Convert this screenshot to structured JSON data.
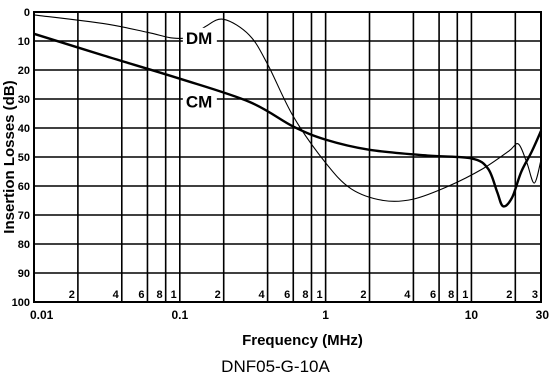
{
  "chart_data": {
    "type": "line",
    "title": "",
    "xlabel_prefix": "Frequency",
    "xlabel_unit": "(MHz)",
    "ylabel_prefix": "Insertion Losses",
    "ylabel_unit": "(dB)",
    "x_scale": "log",
    "xlim": [
      0.01,
      30
    ],
    "ylim": [
      0,
      100
    ],
    "y_inverted": true,
    "y_ticks": [
      0,
      10,
      20,
      30,
      40,
      50,
      60,
      70,
      80,
      90,
      100
    ],
    "y_tick_labels": [
      "0",
      "10",
      "20",
      "30",
      "40",
      "50",
      "60",
      "70",
      "80",
      "90",
      "100"
    ],
    "x_decade_ticks": [
      0.01,
      0.1,
      1,
      10,
      30
    ],
    "x_decade_labels": [
      "0.01",
      "0.1",
      "1",
      "10",
      "30"
    ],
    "x_minor_ticks": [
      {
        "x": 0.02,
        "label": "2"
      },
      {
        "x": 0.04,
        "label": "4"
      },
      {
        "x": 0.06,
        "label": "6"
      },
      {
        "x": 0.08,
        "label": "8"
      },
      {
        "x": 0.1,
        "label": "1"
      },
      {
        "x": 0.2,
        "label": "2"
      },
      {
        "x": 0.4,
        "label": "4"
      },
      {
        "x": 0.6,
        "label": "6"
      },
      {
        "x": 0.8,
        "label": "8"
      },
      {
        "x": 1,
        "label": "1"
      },
      {
        "x": 2,
        "label": "2"
      },
      {
        "x": 4,
        "label": "4"
      },
      {
        "x": 6,
        "label": "6"
      },
      {
        "x": 8,
        "label": "8"
      },
      {
        "x": 10,
        "label": "1"
      },
      {
        "x": 20,
        "label": "2"
      },
      {
        "x": 30,
        "label": "3"
      }
    ],
    "grid": true,
    "series": [
      {
        "name": "DM",
        "line": "thin",
        "points": [
          {
            "x": 0.01,
            "y": 1
          },
          {
            "x": 0.03,
            "y": 4
          },
          {
            "x": 0.06,
            "y": 7
          },
          {
            "x": 0.09,
            "y": 9
          },
          {
            "x": 0.12,
            "y": 8.5
          },
          {
            "x": 0.15,
            "y": 5
          },
          {
            "x": 0.2,
            "y": 2.5
          },
          {
            "x": 0.3,
            "y": 8
          },
          {
            "x": 0.4,
            "y": 18
          },
          {
            "x": 0.6,
            "y": 36
          },
          {
            "x": 1,
            "y": 52
          },
          {
            "x": 1.5,
            "y": 61
          },
          {
            "x": 2.5,
            "y": 65
          },
          {
            "x": 4,
            "y": 64.5
          },
          {
            "x": 7,
            "y": 60
          },
          {
            "x": 12,
            "y": 54
          },
          {
            "x": 18,
            "y": 48
          },
          {
            "x": 21,
            "y": 45.5
          },
          {
            "x": 24,
            "y": 52
          },
          {
            "x": 27,
            "y": 59
          },
          {
            "x": 30,
            "y": 51
          }
        ]
      },
      {
        "name": "CM",
        "line": "thick",
        "points": [
          {
            "x": 0.01,
            "y": 7.5
          },
          {
            "x": 0.03,
            "y": 15
          },
          {
            "x": 0.1,
            "y": 23
          },
          {
            "x": 0.3,
            "y": 31
          },
          {
            "x": 0.6,
            "y": 39.5
          },
          {
            "x": 1,
            "y": 44
          },
          {
            "x": 2,
            "y": 47.5
          },
          {
            "x": 5,
            "y": 49.5
          },
          {
            "x": 10,
            "y": 50.5
          },
          {
            "x": 13,
            "y": 54
          },
          {
            "x": 15,
            "y": 62
          },
          {
            "x": 16.5,
            "y": 67
          },
          {
            "x": 19,
            "y": 64
          },
          {
            "x": 22,
            "y": 55
          },
          {
            "x": 26,
            "y": 48
          },
          {
            "x": 30,
            "y": 41
          }
        ]
      }
    ],
    "annotations": [
      {
        "text": "DM",
        "x": 0.11,
        "y": 11
      },
      {
        "text": "CM",
        "x": 0.11,
        "y": 33
      }
    ]
  },
  "caption": "DNF05-G-10A"
}
